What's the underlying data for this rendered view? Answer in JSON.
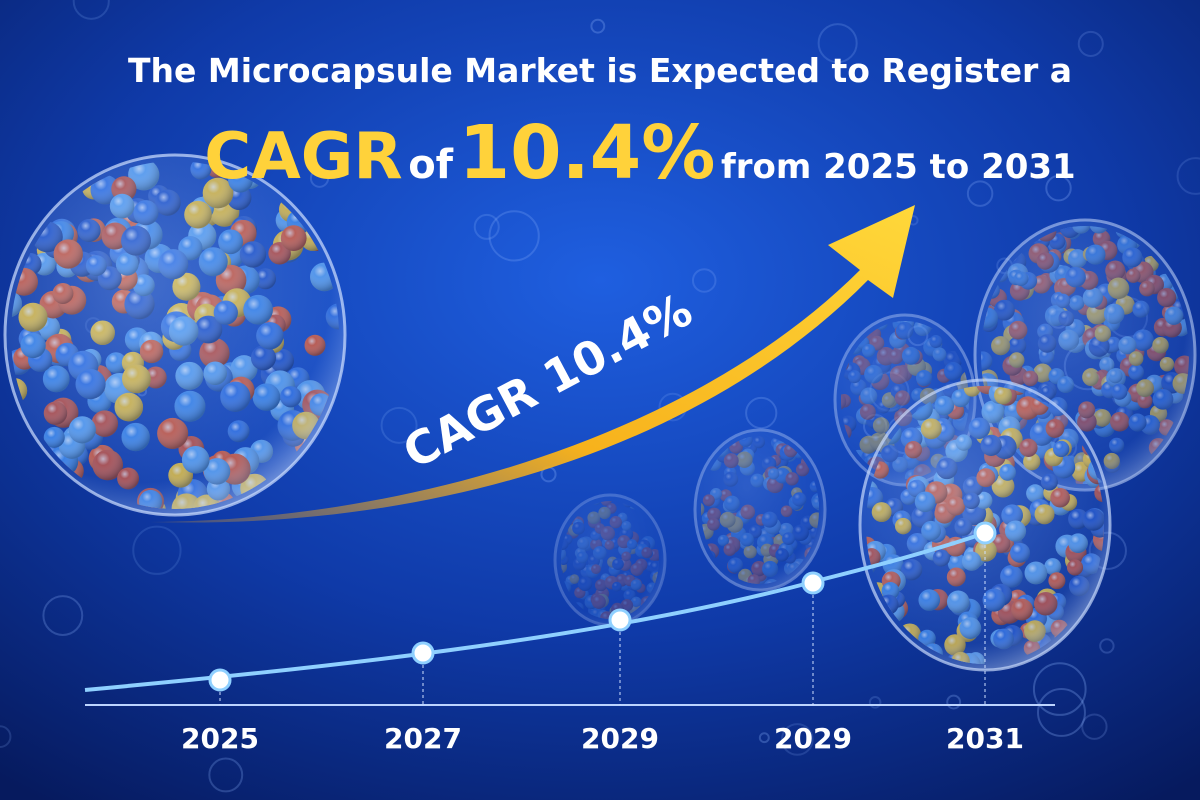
{
  "header": {
    "title": "The Microcapsule Market is Expected to Register a",
    "cagr": "CAGR",
    "of": "of",
    "rate": "10.4%",
    "period": "from 2025 to 2031"
  },
  "arrow_label": "CAGR 10.4%",
  "timeline": {
    "labels": [
      "2025",
      "2027",
      "2029",
      "2029",
      "2031"
    ]
  }
}
